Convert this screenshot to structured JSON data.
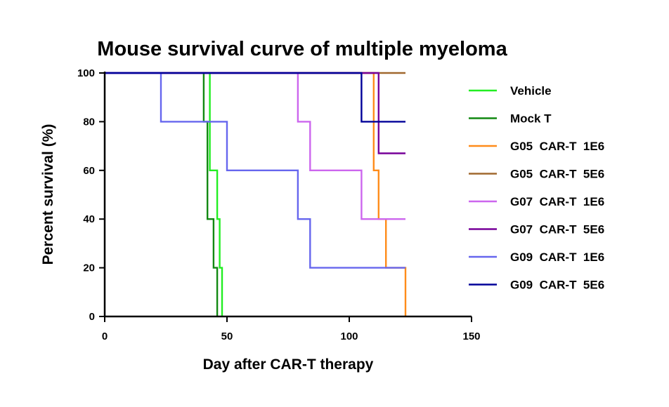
{
  "chart_data": {
    "type": "line",
    "title": "Mouse survival curve of multiple myeloma",
    "xlabel": "Day after CAR-T therapy",
    "ylabel": "Percent survival (%)",
    "xlim": [
      0,
      150
    ],
    "ylim": [
      0,
      100
    ],
    "xticks": [
      "0",
      "50",
      "100",
      "150"
    ],
    "yticks": [
      "0",
      "20",
      "40",
      "60",
      "80",
      "100"
    ],
    "grid": false,
    "legend_position": "right",
    "step": true,
    "series": [
      {
        "name": "Vehicle",
        "color": "#22ee22",
        "x": [
          0,
          43,
          43,
          46,
          46,
          47,
          47,
          48,
          48
        ],
        "y": [
          100,
          100,
          60,
          60,
          40,
          40,
          20,
          20,
          0
        ]
      },
      {
        "name": "Mock T",
        "color": "#118811",
        "x": [
          0,
          40.5,
          40.5,
          42,
          42,
          44.5,
          44.5,
          46,
          46
        ],
        "y": [
          100,
          100,
          80,
          80,
          40,
          40,
          20,
          20,
          0
        ]
      },
      {
        "name": "G05  CAR-T  1E6",
        "color": "#ff8c1a",
        "x": [
          0,
          110,
          110,
          112,
          112,
          115,
          115,
          123,
          123
        ],
        "y": [
          100,
          100,
          60,
          60,
          40,
          40,
          20,
          20,
          0
        ]
      },
      {
        "name": "G05  CAR-T  5E6",
        "color": "#a0682e",
        "x": [
          0,
          123
        ],
        "y": [
          100,
          100
        ]
      },
      {
        "name": "G07  CAR-T  1E6",
        "color": "#cc66ee",
        "x": [
          0,
          79,
          79,
          84,
          84,
          105,
          105,
          123
        ],
        "y": [
          100,
          100,
          80,
          80,
          60,
          60,
          40,
          40
        ]
      },
      {
        "name": "G07  CAR-T  5E6",
        "color": "#770099",
        "x": [
          0,
          112,
          112,
          123
        ],
        "y": [
          100,
          100,
          67,
          67
        ]
      },
      {
        "name": "G09  CAR-T  1E6",
        "color": "#6666ee",
        "x": [
          0,
          23,
          23,
          50,
          50,
          79,
          79,
          84,
          84,
          123
        ],
        "y": [
          100,
          100,
          80,
          80,
          60,
          60,
          40,
          40,
          20,
          20
        ]
      },
      {
        "name": "G09  CAR-T  5E6",
        "color": "#000099",
        "x": [
          0,
          105,
          105,
          123
        ],
        "y": [
          100,
          100,
          80,
          80
        ]
      }
    ]
  }
}
